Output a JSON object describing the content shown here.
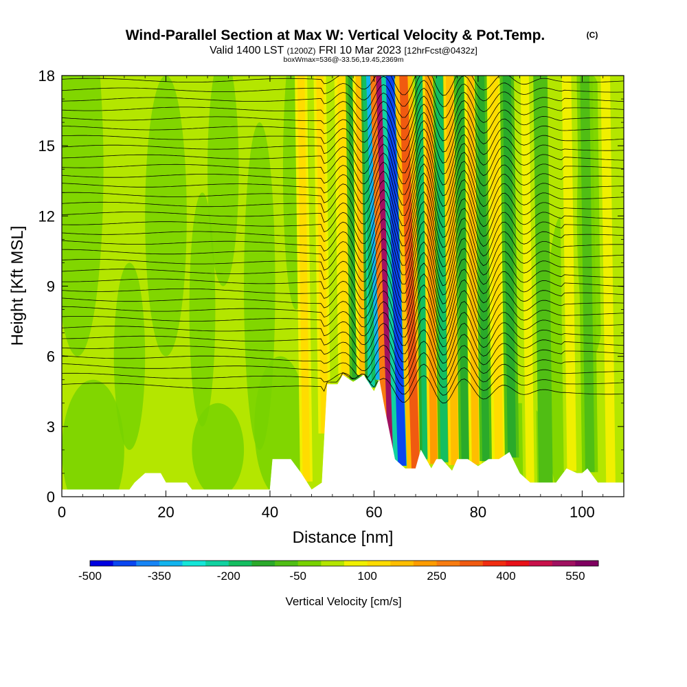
{
  "header": {
    "title": "Wind-Parallel Section at Max W: Vertical Velocity & Pot.Temp.",
    "copyright": "(C)",
    "valid_a": "Valid 1400 LST",
    "valid_b": "(1200Z)",
    "valid_c": "FRI 10 Mar 2023",
    "valid_d": "[12hrFcst@0432z]",
    "box_info": "boxWmax=536@-33.56,19.45,2369m"
  },
  "chart_data": {
    "type": "heatmap",
    "xlabel": "Distance [nm]",
    "ylabel": "Height [Kft MSL]",
    "xlim": [
      0,
      108
    ],
    "ylim": [
      0,
      18
    ],
    "x_ticks": [
      0,
      20,
      40,
      60,
      80,
      100
    ],
    "y_ticks": [
      0,
      3,
      6,
      9,
      12,
      15,
      18
    ],
    "colorbar": {
      "label": "Vertical Velocity [cm/s]",
      "min": -500,
      "max": 600,
      "step": 50,
      "tick_labels": [
        -500,
        -350,
        -200,
        -50,
        100,
        250,
        400,
        550
      ],
      "colors": [
        "#0000e0",
        "#0a46f0",
        "#1684f5",
        "#12b4ee",
        "#14e6d8",
        "#10d2a0",
        "#14be60",
        "#2aaa2a",
        "#50be14",
        "#78d200",
        "#b4e600",
        "#f0f000",
        "#ffdc00",
        "#ffbe00",
        "#ff9c00",
        "#f87c10",
        "#f05a10",
        "#f02c10",
        "#e81018",
        "#c8104a",
        "#a01060",
        "#800060"
      ]
    },
    "vertical_velocity_bands": [
      {
        "x": 47.0,
        "w": 0.7,
        "value": 110
      },
      {
        "x": 50.5,
        "w": 0.7,
        "value": 100
      },
      {
        "x": 54.5,
        "w": 0.8,
        "value": 120
      },
      {
        "x": 56.5,
        "w": 0.7,
        "value": -150
      },
      {
        "x": 58.0,
        "w": 0.8,
        "value": 150
      },
      {
        "x": 59.5,
        "w": 0.7,
        "value": -250
      },
      {
        "x": 61.0,
        "w": 0.7,
        "value": -350
      },
      {
        "x": 63.6,
        "w": 1.0,
        "value": 520
      },
      {
        "x": 65.4,
        "w": 0.8,
        "value": -430
      },
      {
        "x": 68.0,
        "w": 0.8,
        "value": 300
      },
      {
        "x": 70.0,
        "w": 0.7,
        "value": -200
      },
      {
        "x": 71.5,
        "w": 0.7,
        "value": 220
      },
      {
        "x": 73.5,
        "w": 0.7,
        "value": -160
      },
      {
        "x": 75.5,
        "w": 0.7,
        "value": 190
      },
      {
        "x": 77.5,
        "w": 0.7,
        "value": -150
      },
      {
        "x": 79.5,
        "w": 0.7,
        "value": 170
      },
      {
        "x": 81.5,
        "w": 0.7,
        "value": -120
      },
      {
        "x": 84.0,
        "w": 0.8,
        "value": 140
      },
      {
        "x": 86.5,
        "w": 0.8,
        "value": -110
      },
      {
        "x": 90.0,
        "w": 0.8,
        "value": 90
      },
      {
        "x": 93.0,
        "w": 0.8,
        "value": -100
      },
      {
        "x": 98.0,
        "w": 0.9,
        "value": 70
      },
      {
        "x": 101.5,
        "w": 0.9,
        "value": -80
      },
      {
        "x": 105.5,
        "w": 0.9,
        "value": 60
      }
    ],
    "terrain_profile": {
      "x": [
        0,
        13,
        14,
        16,
        19,
        20,
        24,
        25,
        37,
        40,
        40.5,
        44,
        46,
        48,
        50,
        51,
        53,
        54,
        56,
        58,
        60,
        61,
        62,
        63,
        64,
        66,
        68,
        69,
        70,
        71,
        72,
        73,
        75,
        76,
        78,
        80,
        82,
        84,
        86,
        88,
        90,
        92,
        95,
        97,
        99,
        100,
        101,
        103,
        105,
        108
      ],
      "height": [
        0.3,
        0.3,
        0.6,
        1.0,
        1.0,
        0.6,
        0.6,
        0.3,
        0.3,
        0.3,
        1.6,
        1.6,
        1.0,
        0.3,
        0.6,
        4.8,
        4.8,
        5.2,
        4.9,
        5.2,
        4.5,
        5.0,
        3.8,
        2.7,
        1.6,
        1.2,
        1.2,
        2.0,
        1.6,
        1.2,
        1.6,
        1.6,
        1.1,
        1.6,
        1.6,
        1.3,
        1.6,
        1.6,
        1.9,
        1.0,
        0.6,
        0.6,
        0.6,
        1.2,
        1.0,
        1.0,
        1.2,
        0.6,
        0.6,
        0.6
      ]
    },
    "isentropes": {
      "count": 33,
      "base_height_low": 4.8,
      "base_height_high": 17.8
    }
  }
}
